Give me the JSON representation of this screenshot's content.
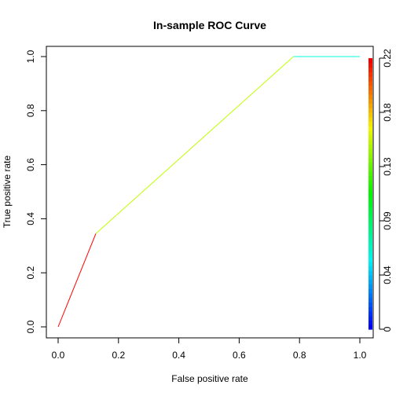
{
  "chart_data": {
    "type": "line",
    "title": "In-sample ROC Curve",
    "xlabel": "False positive rate",
    "ylabel": "True positive rate",
    "xlim": [
      0,
      1
    ],
    "ylim": [
      0,
      1
    ],
    "x_ticks": [
      "0.0",
      "0.2",
      "0.4",
      "0.6",
      "0.8",
      "1.0"
    ],
    "y_ticks": [
      "0.0",
      "0.2",
      "0.4",
      "0.6",
      "0.8",
      "1.0"
    ],
    "grid": false,
    "series": [
      {
        "segments": [
          {
            "x": [
              0.0,
              0.125
            ],
            "y": [
              0.0,
              0.345
            ],
            "color": "#ff0000"
          },
          {
            "x": [
              0.125,
              0.78
            ],
            "y": [
              0.345,
              1.0
            ],
            "color": "#bfff00"
          },
          {
            "x": [
              0.78,
              1.0
            ],
            "y": [
              1.0,
              1.0
            ],
            "color": "#00ffdd"
          }
        ]
      }
    ],
    "colorbar": {
      "range": [
        0,
        0.22
      ],
      "ticks": [
        "0",
        "0.04",
        "0.09",
        "0.13",
        "0.18",
        "0.22"
      ],
      "tick_values": [
        0,
        0.044,
        0.088,
        0.132,
        0.176,
        0.22
      ]
    }
  }
}
